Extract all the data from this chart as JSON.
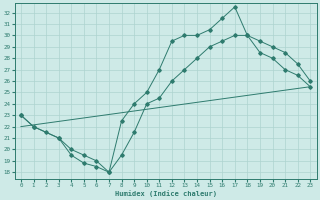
{
  "xlabel": "Humidex (Indice chaleur)",
  "bg_color": "#ceeae7",
  "grid_color": "#aed4d0",
  "line_color": "#2e7b6e",
  "x_ticks": [
    0,
    1,
    2,
    3,
    4,
    5,
    6,
    7,
    8,
    9,
    10,
    11,
    12,
    13,
    14,
    15,
    16,
    17,
    18,
    19,
    20,
    21,
    22,
    23
  ],
  "y_ticks": [
    18,
    19,
    20,
    21,
    22,
    23,
    24,
    25,
    26,
    27,
    28,
    29,
    30,
    31,
    32
  ],
  "ylim": [
    17.4,
    32.8
  ],
  "xlim": [
    -0.5,
    23.5
  ],
  "curve1_x": [
    0,
    1,
    2,
    3,
    4,
    5,
    6,
    7,
    8,
    9,
    10,
    11,
    12,
    13,
    14,
    15,
    16,
    17,
    18,
    19,
    20,
    21,
    22,
    23
  ],
  "curve1_y": [
    23,
    22,
    21.5,
    21,
    19.5,
    18.8,
    18.5,
    18,
    19.5,
    21.5,
    24,
    24.5,
    26,
    27,
    28,
    29,
    29.5,
    30,
    30,
    28.5,
    28,
    27,
    26.5,
    25.5
  ],
  "curve2_x": [
    0,
    1,
    3,
    4,
    5,
    6,
    7,
    8,
    9,
    10,
    11,
    12,
    13,
    14,
    15,
    16,
    17,
    18,
    19,
    20,
    21,
    22,
    23
  ],
  "curve2_y": [
    23,
    22,
    21,
    20,
    19.5,
    19,
    18,
    22.5,
    24,
    25,
    27,
    29.5,
    30,
    30,
    30.5,
    31.5,
    32.5,
    30,
    29.5,
    29,
    28.5,
    27.5,
    26
  ],
  "line3_x": [
    0,
    23
  ],
  "line3_y": [
    22,
    25.5
  ]
}
